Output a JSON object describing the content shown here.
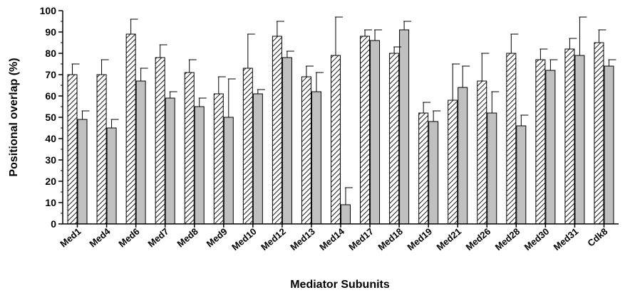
{
  "chart_data": {
    "type": "bar",
    "title": "",
    "xlabel": "Mediator Subunits",
    "ylabel": "Positional overlap (%)",
    "ylim": [
      0,
      100
    ],
    "yticks": [
      0,
      10,
      20,
      30,
      40,
      50,
      60,
      70,
      80,
      90,
      100
    ],
    "grid": false,
    "legend": "none",
    "categories": [
      "Med1",
      "Med4",
      "Med6",
      "Med7",
      "Med8",
      "Med9",
      "Med10",
      "Med12",
      "Med13",
      "Med14",
      "Med17",
      "Med18",
      "Med19",
      "Med21",
      "Med26",
      "Med28",
      "Med30",
      "Med31",
      "Cdk8"
    ],
    "series": [
      {
        "fill": "hatched",
        "color": "#ffffff",
        "values": [
          70,
          70,
          89,
          78,
          71,
          61,
          73,
          88,
          69,
          79,
          88,
          80,
          52,
          58,
          67,
          80,
          77,
          82,
          85
        ],
        "errors": [
          5,
          7,
          7,
          6,
          6,
          8,
          16,
          7,
          5,
          18,
          3,
          3,
          5,
          17,
          13,
          9,
          5,
          5,
          6
        ]
      },
      {
        "fill": "solid",
        "color": "#c0c0c0",
        "values": [
          49,
          45,
          67,
          59,
          55,
          50,
          61,
          78,
          62,
          9,
          86,
          91,
          48,
          64,
          52,
          46,
          72,
          79,
          74
        ],
        "errors": [
          4,
          4,
          6,
          3,
          4,
          18,
          2,
          3,
          9,
          8,
          5,
          4,
          5,
          10,
          10,
          5,
          5,
          18,
          3
        ]
      }
    ]
  }
}
